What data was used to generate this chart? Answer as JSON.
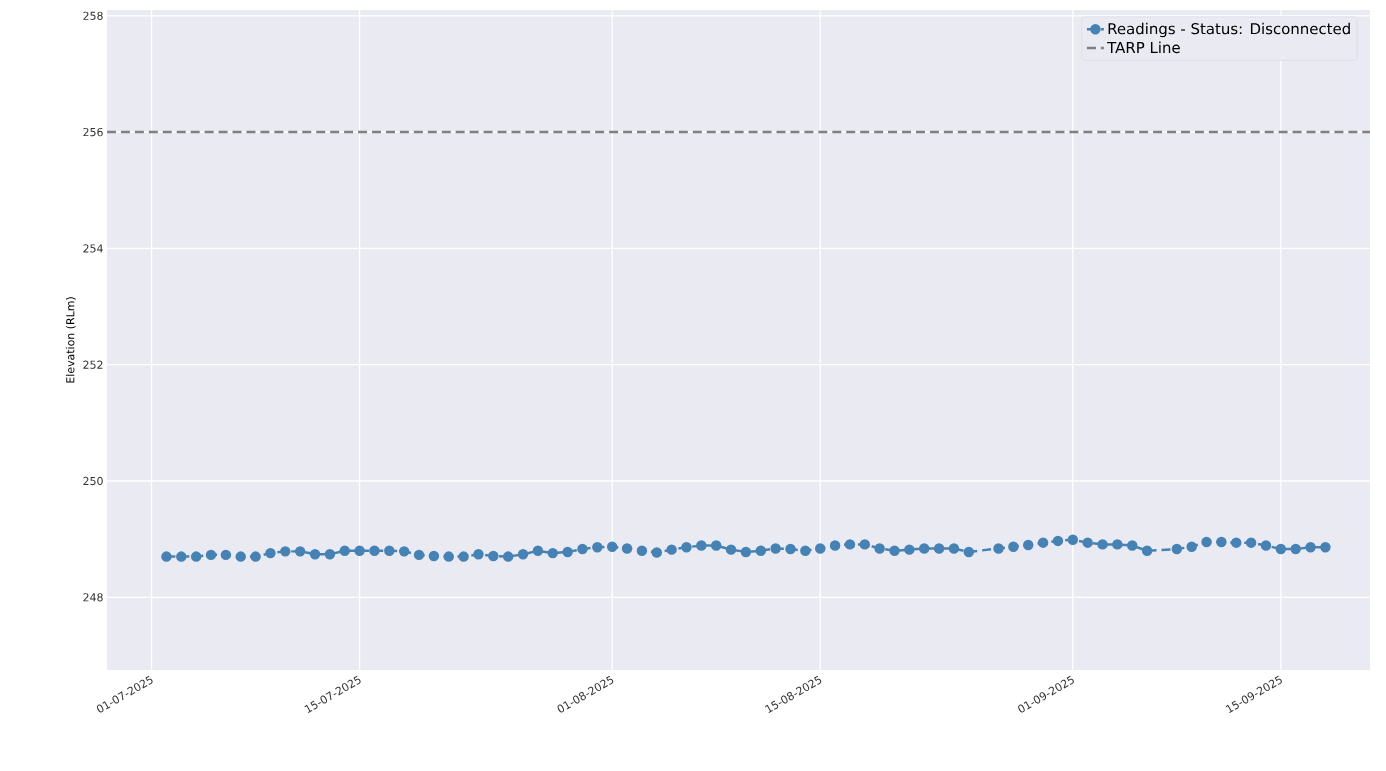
{
  "chart_data": {
    "type": "line",
    "ylabel": "Elevation (RLm)",
    "x": [
      "2025-07-02",
      "2025-07-03",
      "2025-07-04",
      "2025-07-05",
      "2025-07-06",
      "2025-07-07",
      "2025-07-08",
      "2025-07-09",
      "2025-07-10",
      "2025-07-11",
      "2025-07-12",
      "2025-07-13",
      "2025-07-14",
      "2025-07-15",
      "2025-07-16",
      "2025-07-17",
      "2025-07-18",
      "2025-07-19",
      "2025-07-20",
      "2025-07-21",
      "2025-07-22",
      "2025-07-23",
      "2025-07-24",
      "2025-07-25",
      "2025-07-26",
      "2025-07-27",
      "2025-07-28",
      "2025-07-29",
      "2025-07-30",
      "2025-07-31",
      "2025-08-01",
      "2025-08-02",
      "2025-08-03",
      "2025-08-04",
      "2025-08-05",
      "2025-08-06",
      "2025-08-07",
      "2025-08-08",
      "2025-08-09",
      "2025-08-10",
      "2025-08-11",
      "2025-08-12",
      "2025-08-13",
      "2025-08-14",
      "2025-08-15",
      "2025-08-16",
      "2025-08-17",
      "2025-08-18",
      "2025-08-19",
      "2025-08-20",
      "2025-08-21",
      "2025-08-22",
      "2025-08-23",
      "2025-08-24",
      "2025-08-25",
      "2025-08-27",
      "2025-08-28",
      "2025-08-29",
      "2025-08-30",
      "2025-08-31",
      "2025-09-01",
      "2025-09-02",
      "2025-09-03",
      "2025-09-04",
      "2025-09-05",
      "2025-09-06",
      "2025-09-08",
      "2025-09-09",
      "2025-09-10",
      "2025-09-11",
      "2025-09-12",
      "2025-09-13",
      "2025-09-14",
      "2025-09-15",
      "2025-09-16",
      "2025-09-17",
      "2025-09-18"
    ],
    "series": [
      {
        "name": "Readings - Status: Disconnected",
        "color": "#4682b4",
        "values": [
          248.7,
          248.7,
          248.7,
          248.73,
          248.73,
          248.7,
          248.7,
          248.76,
          248.79,
          248.79,
          248.74,
          248.74,
          248.8,
          248.8,
          248.8,
          248.8,
          248.79,
          248.73,
          248.71,
          248.7,
          248.7,
          248.74,
          248.71,
          248.7,
          248.74,
          248.8,
          248.76,
          248.78,
          248.83,
          248.86,
          248.87,
          248.84,
          248.8,
          248.77,
          248.82,
          248.86,
          248.89,
          248.89,
          248.82,
          248.78,
          248.8,
          248.84,
          248.83,
          248.8,
          248.84,
          248.89,
          248.91,
          248.91,
          248.84,
          248.8,
          248.82,
          248.84,
          248.84,
          248.84,
          248.78,
          248.84,
          248.87,
          248.9,
          248.94,
          248.97,
          248.99,
          248.94,
          248.91,
          248.91,
          248.89,
          248.8,
          248.83,
          248.87,
          248.95,
          248.95,
          248.94,
          248.94,
          248.89,
          248.83,
          248.83,
          248.86,
          248.86
        ]
      }
    ],
    "ref_lines": [
      {
        "axis": "y",
        "value": 256,
        "label": "TARP Line",
        "color": "#808080",
        "line_style": "dashed"
      }
    ],
    "xlim": [
      "2025-06-28",
      "2025-09-21"
    ],
    "ylim": [
      246.75,
      258.1
    ],
    "xticks": [
      {
        "value": "2025-07-01",
        "label": "01-07-2025"
      },
      {
        "value": "2025-07-15",
        "label": "15-07-2025"
      },
      {
        "value": "2025-08-01",
        "label": "01-08-2025"
      },
      {
        "value": "2025-08-15",
        "label": "15-08-2025"
      },
      {
        "value": "2025-09-01",
        "label": "01-09-2025"
      },
      {
        "value": "2025-09-15",
        "label": "15-09-2025"
      }
    ],
    "yticks": [
      248,
      250,
      252,
      254,
      256,
      258
    ],
    "grid": true,
    "legend": "top right",
    "marker": "circle",
    "line_style": "dashed"
  }
}
